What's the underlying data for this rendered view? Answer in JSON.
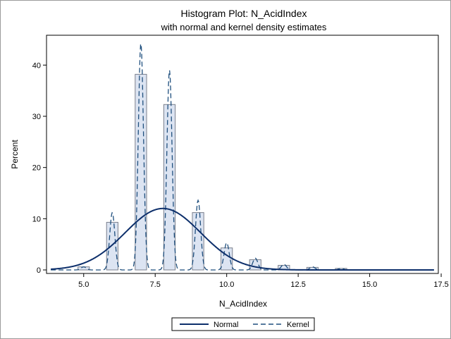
{
  "chart_data": {
    "type": "bar",
    "title": "Histogram Plot: N_AcidIndex",
    "subtitle": "with normal and kernel density estimates",
    "xlabel": "N_AcidIndex",
    "ylabel": "Percent",
    "xlim": [
      3.7,
      17.4
    ],
    "ylim": [
      0,
      45
    ],
    "x_ticks": [
      "5.0",
      "7.5",
      "10.0",
      "12.5",
      "15.0",
      "17.5"
    ],
    "y_ticks": [
      "0",
      "10",
      "20",
      "30",
      "40"
    ],
    "grid": false,
    "legend_position": "bottom",
    "bar_width": 0.4,
    "bars": [
      {
        "x": 5.0,
        "value": 0.6
      },
      {
        "x": 6.0,
        "value": 9.3
      },
      {
        "x": 7.0,
        "value": 38.2
      },
      {
        "x": 8.0,
        "value": 32.3
      },
      {
        "x": 9.0,
        "value": 11.2
      },
      {
        "x": 10.0,
        "value": 4.3
      },
      {
        "x": 11.0,
        "value": 2.0
      },
      {
        "x": 12.0,
        "value": 0.9
      },
      {
        "x": 13.0,
        "value": 0.5
      },
      {
        "x": 14.0,
        "value": 0.3
      }
    ],
    "series": [
      {
        "name": "Normal",
        "style": "solid",
        "mean": 7.77,
        "peak": 12.0,
        "sd": 1.32
      },
      {
        "name": "Kernel",
        "style": "dashed",
        "peaks": [
          {
            "x": 5.0,
            "height": 0.6
          },
          {
            "x": 6.0,
            "height": 11.2
          },
          {
            "x": 7.0,
            "height": 44.3
          },
          {
            "x": 8.0,
            "height": 39.0
          },
          {
            "x": 9.0,
            "height": 13.6
          },
          {
            "x": 10.0,
            "height": 5.3
          },
          {
            "x": 11.0,
            "height": 2.3
          },
          {
            "x": 12.0,
            "height": 1.1
          },
          {
            "x": 13.0,
            "height": 0.6
          },
          {
            "x": 14.0,
            "height": 0.3
          }
        ],
        "bandwidth": 0.09
      }
    ],
    "colors": {
      "bar_fill": "#dce4f2",
      "bar_stroke": "#7a7f8c",
      "normal_line": "#0d2f6b",
      "kernel_line": "#1f4f7e",
      "axis": "#000000",
      "frame": "#9a9a9a"
    }
  }
}
